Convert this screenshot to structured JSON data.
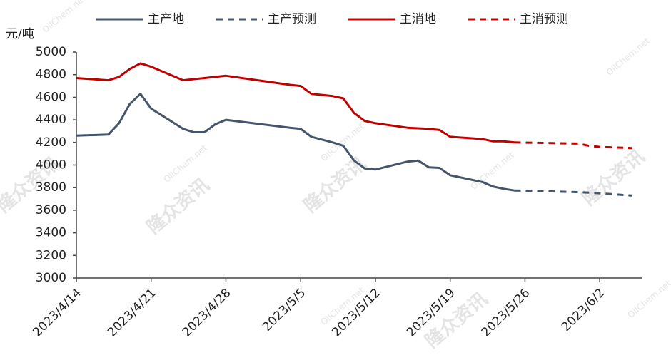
{
  "chart_data": {
    "type": "line",
    "y_axis_label": "元/吨",
    "watermark": "隆众资讯",
    "watermark_sub": "OilChem.net",
    "x": [
      "2023/4/14",
      "2023/4/17",
      "2023/4/18",
      "2023/4/19",
      "2023/4/20",
      "2023/4/21",
      "2023/4/24",
      "2023/4/25",
      "2023/4/26",
      "2023/4/27",
      "2023/4/28",
      "2023/5/4",
      "2023/5/5",
      "2023/5/6",
      "2023/5/8",
      "2023/5/9",
      "2023/5/10",
      "2023/5/11",
      "2023/5/12",
      "2023/5/15",
      "2023/5/16",
      "2023/5/17",
      "2023/5/18",
      "2023/5/19",
      "2023/5/22",
      "2023/5/23",
      "2023/5/24",
      "2023/5/25",
      "2023/5/31",
      "2023/6/1",
      "2023/6/2",
      "2023/6/5"
    ],
    "xlim": [
      "2023/4/14",
      "2023/6/6"
    ],
    "xticks": [
      "2023/4/14",
      "2023/4/21",
      "2023/4/28",
      "2023/5/5",
      "2023/5/12",
      "2023/5/19",
      "2023/5/26",
      "2023/6/2"
    ],
    "ylim": [
      3000,
      5000
    ],
    "yticks": [
      3000,
      3200,
      3400,
      3600,
      3800,
      4000,
      4200,
      4400,
      4600,
      4800,
      5000
    ],
    "grid": false,
    "legend": "top",
    "series": [
      {
        "name": "主产地",
        "color": "#44546a",
        "dash": false,
        "values": [
          4260,
          4270,
          4370,
          4540,
          4630,
          4500,
          4320,
          4290,
          4290,
          4360,
          4400,
          4330,
          4320,
          4250,
          4200,
          4170,
          4040,
          3970,
          3960,
          4030,
          4040,
          3980,
          3975,
          3910,
          3850,
          3810,
          3790,
          3775,
          null,
          null,
          null,
          null
        ]
      },
      {
        "name": "主产预测",
        "color": "#44546a",
        "dash": true,
        "values": [
          null,
          null,
          null,
          null,
          null,
          null,
          null,
          null,
          null,
          null,
          null,
          null,
          null,
          null,
          null,
          null,
          null,
          null,
          null,
          null,
          null,
          null,
          null,
          null,
          null,
          null,
          null,
          3775,
          3760,
          3755,
          3750,
          3730
        ]
      },
      {
        "name": "主消地",
        "color": "#c00000",
        "dash": false,
        "values": [
          4770,
          4750,
          4780,
          4850,
          4900,
          4870,
          4750,
          4760,
          4770,
          4780,
          4790,
          4710,
          4700,
          4630,
          4610,
          4590,
          4460,
          4390,
          4370,
          4330,
          4325,
          4320,
          4310,
          4250,
          4230,
          4210,
          4210,
          4200,
          null,
          null,
          null,
          null
        ]
      },
      {
        "name": "主消预测",
        "color": "#c00000",
        "dash": true,
        "values": [
          null,
          null,
          null,
          null,
          null,
          null,
          null,
          null,
          null,
          null,
          null,
          null,
          null,
          null,
          null,
          null,
          null,
          null,
          null,
          null,
          null,
          null,
          null,
          null,
          null,
          null,
          null,
          4200,
          4190,
          4170,
          4160,
          4150
        ]
      }
    ]
  }
}
